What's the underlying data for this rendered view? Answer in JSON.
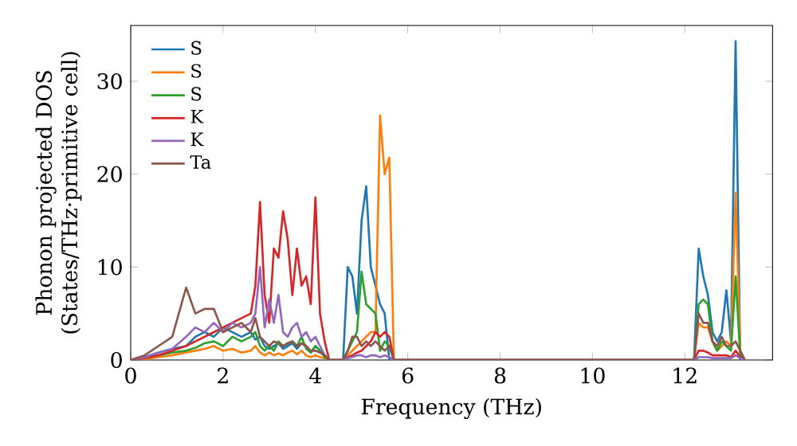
{
  "chart_data": {
    "type": "line",
    "xlabel": "Frequency (THz)",
    "ylabel": "Phonon projected DOS (States/THz·primitive cell)",
    "x": [
      0,
      0.3,
      0.6,
      0.9,
      1.2,
      1.4,
      1.6,
      1.8,
      2.0,
      2.2,
      2.4,
      2.6,
      2.7,
      2.8,
      2.9,
      3.0,
      3.1,
      3.2,
      3.3,
      3.4,
      3.5,
      3.6,
      3.7,
      3.8,
      3.9,
      4.0,
      4.1,
      4.2,
      4.3,
      4.5,
      4.6,
      4.7,
      4.8,
      4.9,
      5.0,
      5.1,
      5.2,
      5.3,
      5.4,
      5.5,
      5.6,
      5.7,
      5.8,
      12.2,
      12.3,
      12.4,
      12.5,
      12.6,
      12.7,
      12.8,
      12.9,
      13.0,
      13.1,
      13.2,
      13.3
    ],
    "series": [
      {
        "name": "S",
        "color": "#1f77b4",
        "values": [
          0,
          0.3,
          0.8,
          1.2,
          1.5,
          2.5,
          3,
          2.5,
          3.5,
          3,
          2.5,
          3,
          2.2,
          2.5,
          1.5,
          1.2,
          1.5,
          1.8,
          1.2,
          1.5,
          1.8,
          1.2,
          1.8,
          1.5,
          0.8,
          1.5,
          1,
          0.5,
          0,
          0,
          0,
          10,
          9,
          5,
          15,
          18.7,
          10,
          8,
          6,
          5,
          0,
          0,
          0,
          0,
          12,
          9,
          7,
          3,
          2,
          3,
          7.5,
          2,
          34.3,
          0,
          0
        ]
      },
      {
        "name": "S",
        "color": "#ff7f0e",
        "values": [
          0,
          0.1,
          0.3,
          0.5,
          0.8,
          1,
          1.2,
          1.5,
          1,
          1.2,
          0.8,
          1,
          1.5,
          0.8,
          0.5,
          0.8,
          0.5,
          0.7,
          0.5,
          0.8,
          1,
          0.6,
          1,
          0.5,
          0.3,
          0.5,
          0.3,
          0.2,
          0,
          0,
          0,
          0.5,
          1,
          1.5,
          2,
          2.5,
          3,
          3,
          26.3,
          20,
          21.8,
          0,
          0,
          0,
          4,
          3.5,
          3.5,
          2,
          1,
          1.5,
          2,
          1.5,
          18,
          1,
          0
        ]
      },
      {
        "name": "S",
        "color": "#2ca02c",
        "values": [
          0,
          0.2,
          0.5,
          0.8,
          1,
          1.3,
          1.8,
          2,
          1.5,
          2.5,
          2,
          2.5,
          3,
          1.5,
          1,
          1.5,
          1,
          2,
          1.5,
          1.8,
          2,
          1.5,
          2.5,
          1.2,
          0.8,
          1.5,
          1,
          0.3,
          0,
          0,
          0,
          1,
          2,
          3,
          9.5,
          6,
          5.5,
          5,
          1,
          2,
          1.5,
          0,
          0,
          0,
          6,
          6.5,
          6,
          2,
          1,
          2,
          1.5,
          1,
          9,
          0.5,
          0
        ]
      },
      {
        "name": "K",
        "color": "#d62728",
        "values": [
          0,
          0.2,
          0.5,
          1,
          1.5,
          2,
          2.5,
          3,
          3.5,
          4,
          4.5,
          5,
          8,
          17,
          7,
          4,
          12,
          11,
          16,
          13,
          7,
          12,
          8,
          9,
          6,
          17.5,
          5,
          2,
          0,
          0,
          0,
          0.3,
          0.5,
          0.8,
          1,
          1.5,
          2,
          3,
          2.5,
          3,
          2.5,
          0,
          0,
          0,
          1,
          1,
          0.8,
          0.5,
          0.5,
          0.5,
          0.5,
          0.3,
          1,
          0.3,
          0
        ]
      },
      {
        "name": "K",
        "color": "#9467bd",
        "values": [
          0,
          0.3,
          0.8,
          1.2,
          2.5,
          3.5,
          3,
          4,
          3,
          4,
          3.5,
          4,
          5,
          10,
          3.5,
          6.5,
          4,
          7,
          3,
          2.5,
          3.5,
          4,
          2.5,
          3,
          2,
          2.5,
          1.5,
          0.5,
          0,
          0,
          0,
          0.2,
          0.3,
          0.5,
          0.5,
          0.3,
          0.5,
          0.5,
          0.3,
          0.5,
          0.3,
          0,
          0,
          0,
          0.3,
          0.3,
          0.3,
          0.2,
          0.2,
          0.2,
          0.2,
          0.2,
          0.5,
          0.2,
          0
        ]
      },
      {
        "name": "Ta",
        "color": "#8c564b",
        "values": [
          0,
          0.5,
          1.5,
          2.5,
          7.8,
          5,
          5.5,
          5.5,
          3,
          3.5,
          4,
          3,
          4.5,
          2.5,
          2,
          1.5,
          2,
          1.8,
          1.5,
          1.8,
          2,
          1.5,
          1.8,
          1.5,
          1,
          1,
          0.8,
          0.5,
          0,
          0,
          0,
          1,
          2.5,
          2.5,
          1.5,
          2,
          1.5,
          2,
          1.5,
          1,
          1.5,
          0,
          0,
          0,
          5,
          4,
          4,
          2,
          1.5,
          2.5,
          1.5,
          1.5,
          2,
          1,
          0
        ]
      }
    ],
    "xlim": [
      0,
      13.9
    ],
    "ylim": [
      0,
      36
    ],
    "xticks": [
      0,
      2,
      4,
      6,
      8,
      10,
      12
    ],
    "yticks": [
      0,
      10,
      20,
      30
    ],
    "legend": "top left",
    "grid": false,
    "marker": "none",
    "line_style": "solid"
  }
}
